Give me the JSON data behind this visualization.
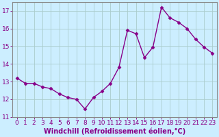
{
  "x": [
    0,
    1,
    2,
    3,
    4,
    5,
    6,
    7,
    8,
    9,
    10,
    11,
    12,
    13,
    14,
    15,
    16,
    17,
    18,
    19,
    20,
    21,
    22,
    23
  ],
  "y": [
    13.2,
    12.9,
    12.9,
    12.7,
    12.6,
    12.3,
    12.1,
    12.0,
    11.45,
    12.1,
    12.45,
    12.9,
    13.8,
    15.9,
    15.7,
    14.35,
    14.95,
    17.2,
    16.6,
    16.35,
    16.0,
    15.4,
    14.95,
    14.6
  ],
  "line_color": "#880088",
  "marker": "D",
  "marker_size": 2.5,
  "background_color": "#cceeff",
  "grid_color": "#aacccc",
  "xlabel": "Windchill (Refroidissement éolien,°C)",
  "xlabel_fontsize": 7,
  "tick_fontsize": 6.5,
  "ylim": [
    11,
    17.5
  ],
  "yticks": [
    11,
    12,
    13,
    14,
    15,
    16,
    17
  ],
  "xlim": [
    -0.5,
    23.5
  ],
  "line_width": 1.0,
  "spine_color": "#888888"
}
